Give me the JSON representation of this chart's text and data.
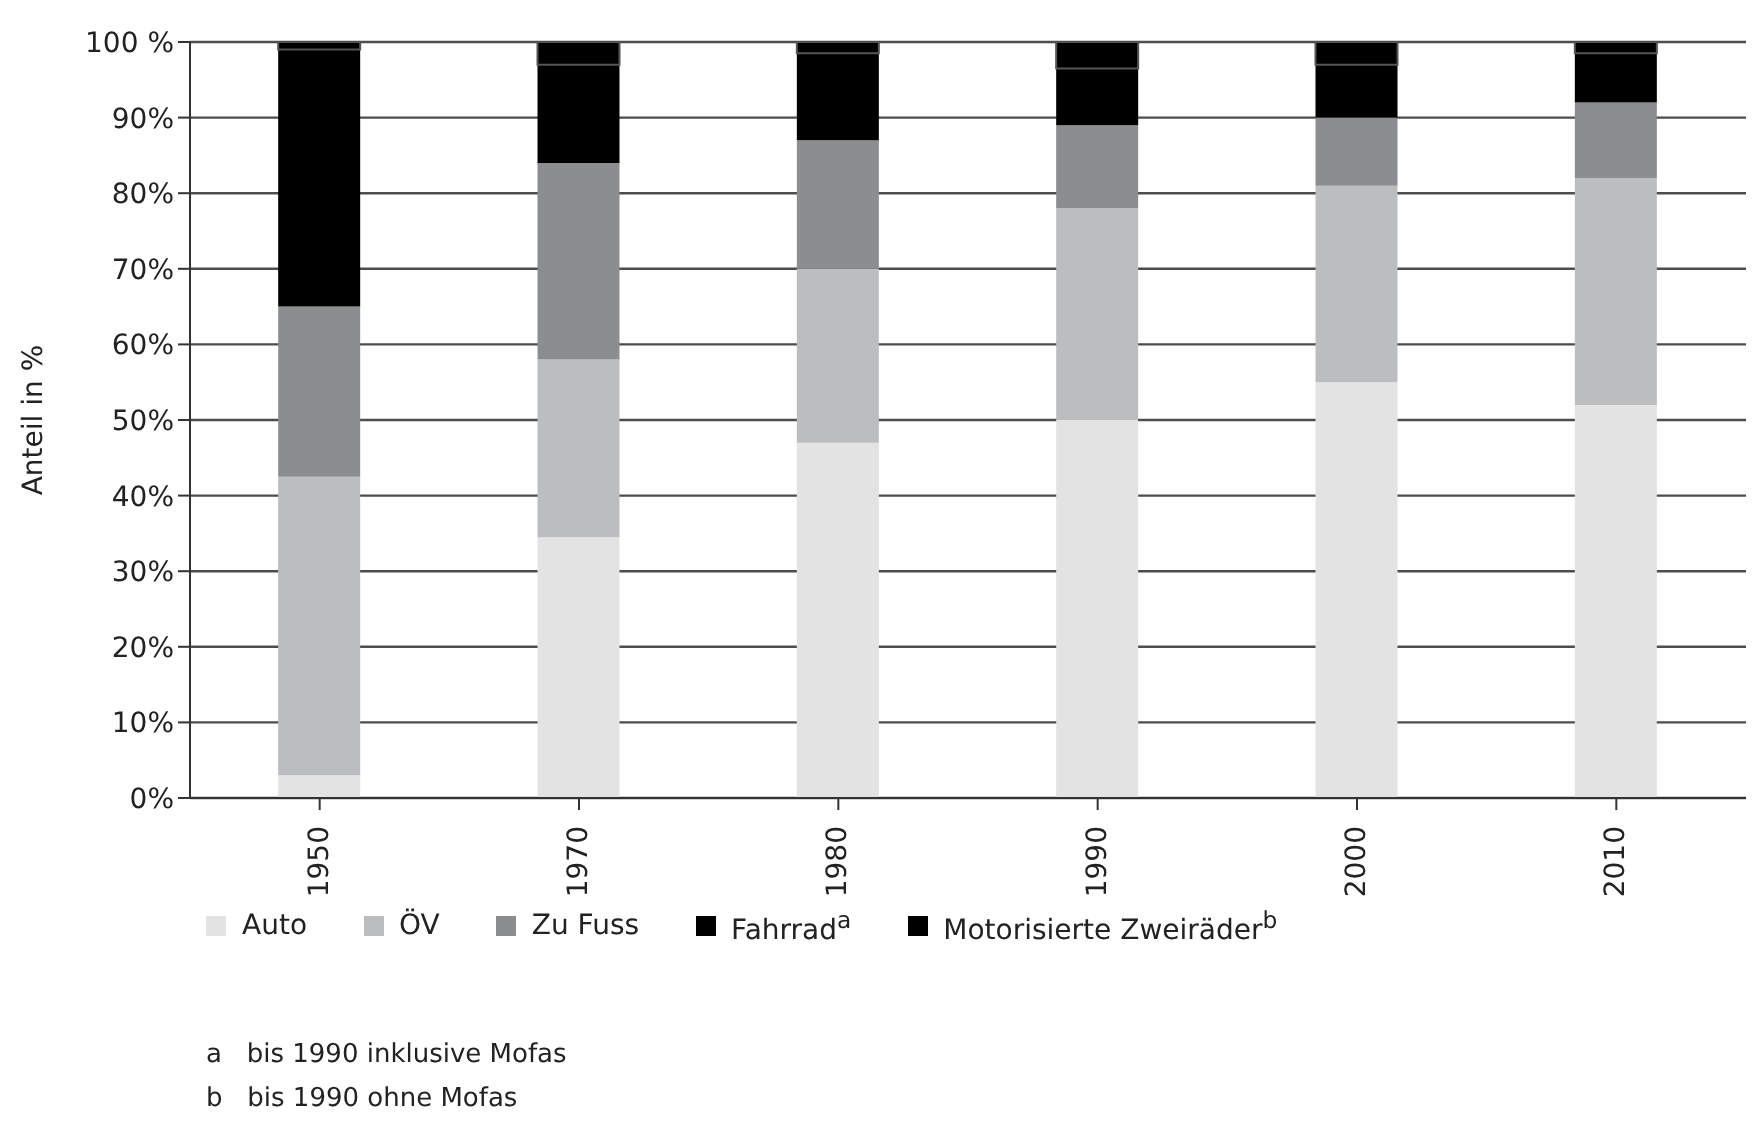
{
  "chart_data": {
    "type": "bar",
    "stacked": true,
    "ylabel": "Anteil in %",
    "categories": [
      "1950",
      "1970",
      "1980",
      "1990",
      "2000",
      "2010"
    ],
    "series": [
      {
        "name": "Auto",
        "color": "#e3e3e4",
        "values": [
          3,
          34.5,
          47,
          50,
          55,
          52
        ]
      },
      {
        "name": "ÖV",
        "color": "#bcbdbf",
        "values": [
          39.5,
          23.5,
          23,
          28,
          26,
          30
        ]
      },
      {
        "name": "Zu Fuss",
        "color": "#8c8d8f",
        "values": [
          22.5,
          26,
          17,
          11,
          9,
          10
        ]
      },
      {
        "name": "Fahrrad$^{a}$",
        "color": "#000000",
        "values": [
          34,
          13,
          11.5,
          7.5,
          7,
          6.5
        ]
      },
      {
        "name": "Motorisierte Zweiräder$^{b}$",
        "color": "#000000",
        "values": [
          1,
          3,
          1.5,
          3.5,
          3,
          1.5
        ]
      }
    ],
    "ylim": [
      0,
      100
    ],
    "yticks": [
      {
        "value": 0,
        "label": "0%"
      },
      {
        "value": 10,
        "label": "10%"
      },
      {
        "value": 20,
        "label": "20%"
      },
      {
        "value": 30,
        "label": "30%"
      },
      {
        "value": 40,
        "label": "40%"
      },
      {
        "value": 50,
        "label": "50%"
      },
      {
        "value": 60,
        "label": "60%"
      },
      {
        "value": 70,
        "label": "70%"
      },
      {
        "value": 80,
        "label": "80%"
      },
      {
        "value": 90,
        "label": "90%"
      },
      {
        "value": 100,
        "label": "100 %"
      }
    ],
    "grid": "y",
    "legend": "bottom",
    "annotations": [
      "a   bis 1990 inklusive Mofas",
      "b   bis 1990 ohne Mofas"
    ]
  }
}
